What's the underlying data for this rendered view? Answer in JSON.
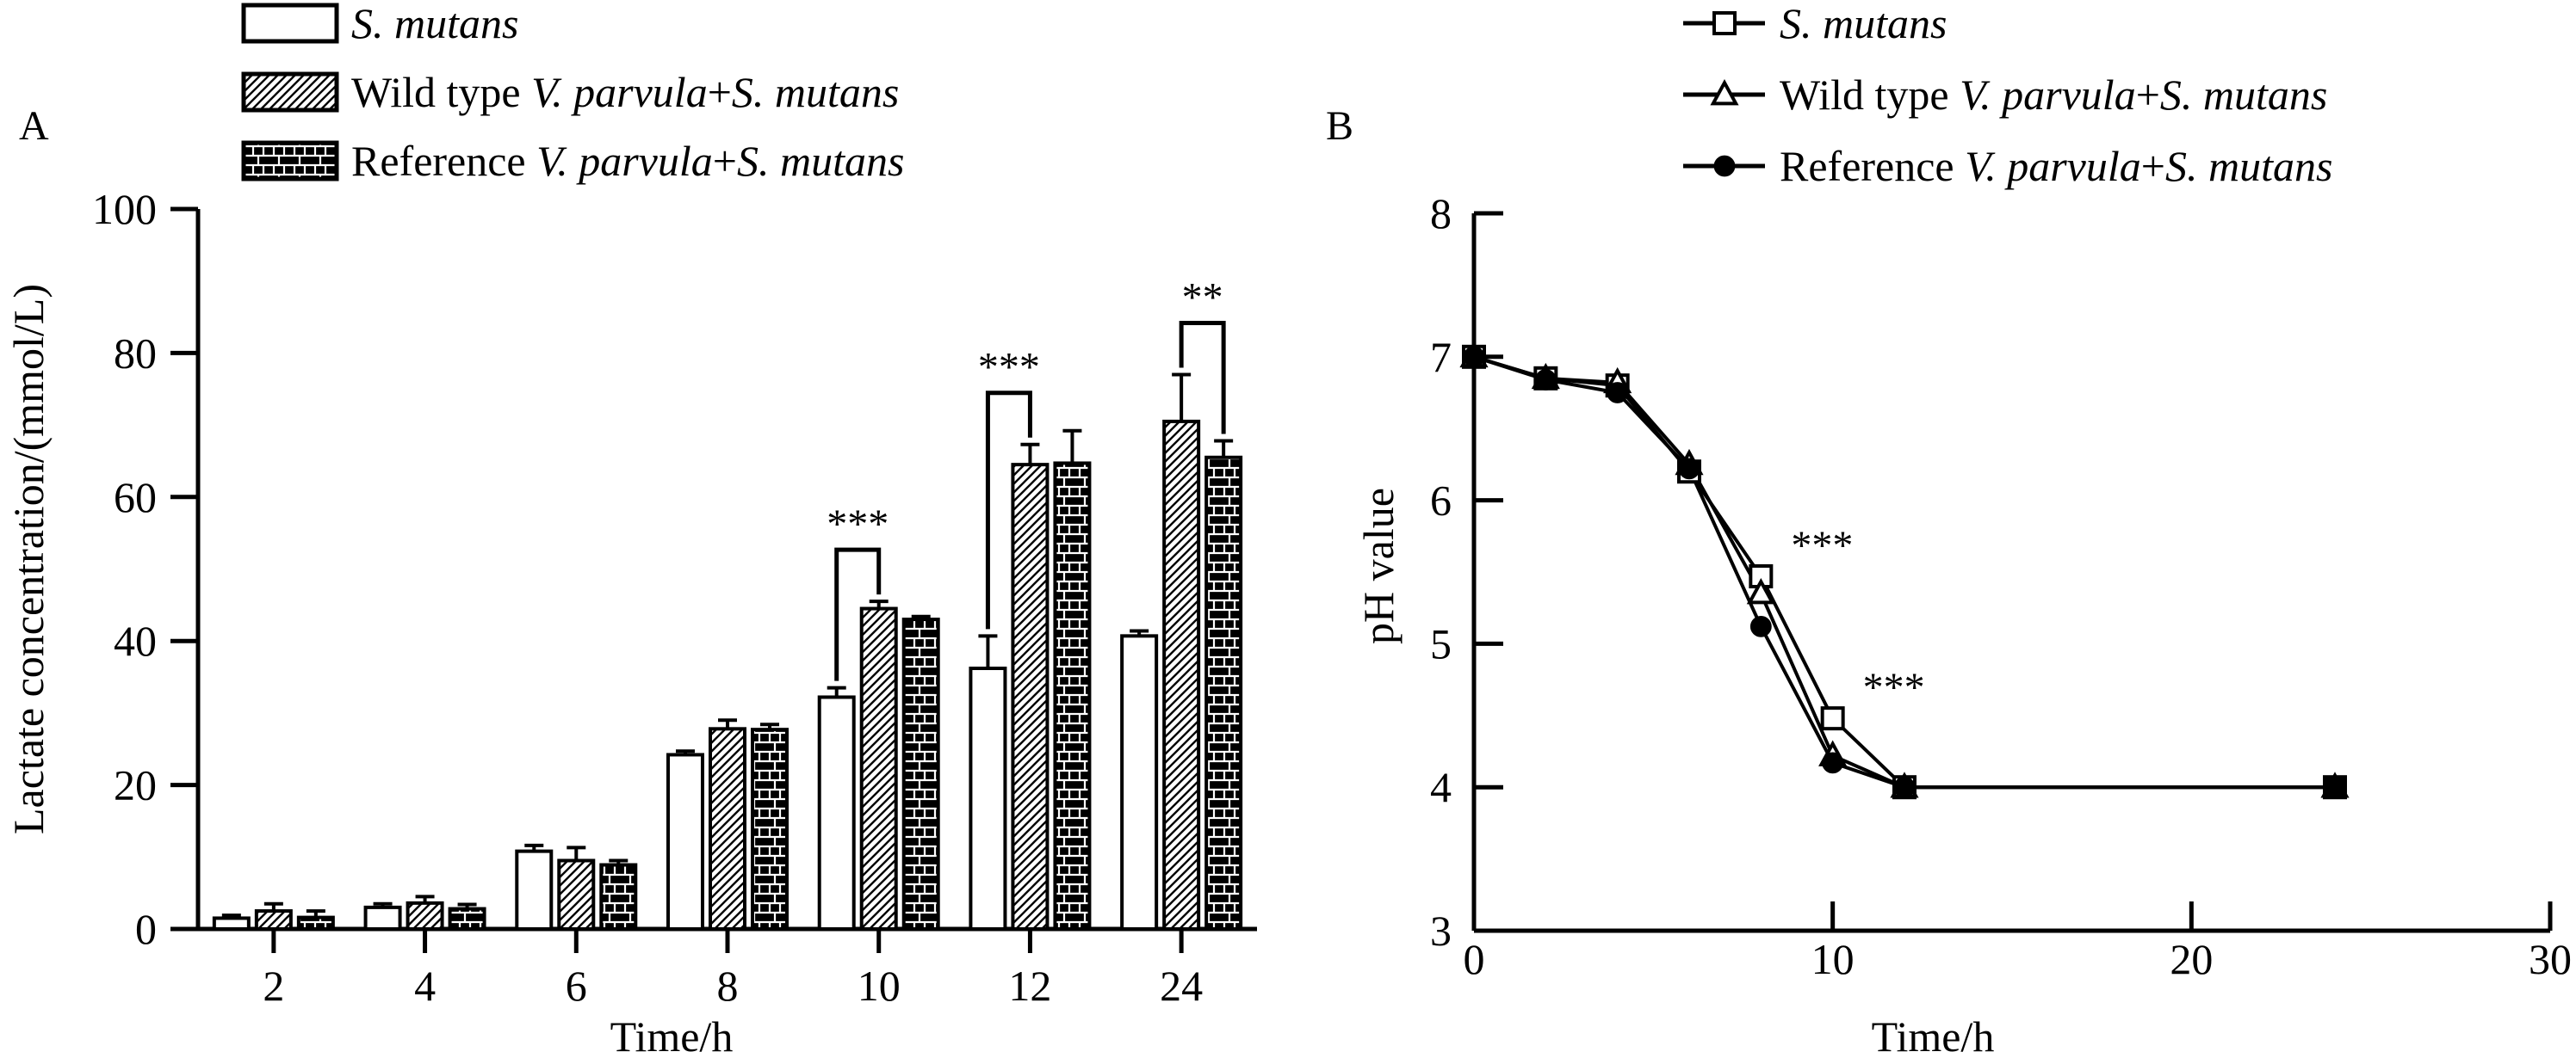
{
  "chart_data": [
    {
      "panel": "A",
      "type": "bar",
      "xlabel": "Time/h",
      "ylabel": "Lactate concentration/(mmol/L)",
      "ylim": [
        0,
        100
      ],
      "yticks": [
        "0",
        "20",
        "40",
        "60",
        "80",
        "100"
      ],
      "categories": [
        "2",
        "4",
        "6",
        "8",
        "10",
        "12",
        "24"
      ],
      "series": [
        {
          "name": "S. mutans",
          "pattern": "open",
          "values": [
            1.5,
            3.0,
            10.8,
            24.2,
            32.2,
            36.2,
            40.7
          ],
          "errors": [
            0.4,
            0.5,
            0.8,
            0.5,
            1.3,
            4.5,
            0.7
          ]
        },
        {
          "name": "Wild type V. parvula+S. mutans",
          "pattern": "hatched",
          "values": [
            2.5,
            3.6,
            9.5,
            27.8,
            44.5,
            64.5,
            70.5
          ],
          "errors": [
            1.0,
            0.9,
            1.8,
            1.2,
            1.0,
            2.8,
            6.5
          ]
        },
        {
          "name": "Reference V. parvula+S. mutans",
          "pattern": "brick",
          "values": [
            1.6,
            2.8,
            8.9,
            27.7,
            43.0,
            64.7,
            65.5
          ],
          "errors": [
            0.9,
            0.6,
            0.6,
            0.7,
            0.4,
            4.5,
            2.3
          ]
        }
      ],
      "legend_labels": [
        {
          "plain": "",
          "italic": "S. mutans",
          "plain2": "",
          "italic2": ""
        },
        {
          "plain": "Wild type ",
          "italic": "V. parvula",
          "plain2": "+",
          "italic2": "S. mutans"
        },
        {
          "plain": "Reference ",
          "italic": "V. parvula",
          "plain2": "+",
          "italic2": "S. mutans"
        }
      ],
      "legend_placement": "top",
      "significance": [
        {
          "label": "***",
          "category": "10",
          "from_series": 0,
          "to_series": 1
        },
        {
          "label": "***",
          "category": "12",
          "from_series": 0,
          "to_series": 1
        },
        {
          "label": "**",
          "category": "24",
          "from_series": 1,
          "to_series": 2
        }
      ]
    },
    {
      "panel": "B",
      "type": "line",
      "xlabel": "Time/h",
      "ylabel": "pH value",
      "xlim": [
        0,
        30
      ],
      "ylim": [
        3,
        8
      ],
      "xticks": [
        "0",
        "10",
        "20",
        "30"
      ],
      "yticks": [
        "3",
        "4",
        "5",
        "6",
        "7",
        "8"
      ],
      "x": [
        0,
        2,
        4,
        6,
        8,
        10,
        12,
        24
      ],
      "series": [
        {
          "name": "S. mutans",
          "marker": "square",
          "values": [
            7.0,
            6.85,
            6.8,
            6.2,
            5.47,
            4.48,
            4.0,
            4.0
          ]
        },
        {
          "name": "Wild type V. parvula+S. mutans",
          "marker": "triangle",
          "values": [
            7.0,
            6.85,
            6.82,
            6.25,
            5.35,
            4.22,
            4.0,
            4.0
          ]
        },
        {
          "name": "Reference V. parvula+S. mutans",
          "marker": "circle",
          "values": [
            7.0,
            6.84,
            6.75,
            6.22,
            5.12,
            4.17,
            4.0,
            4.0
          ]
        }
      ],
      "legend_labels": [
        {
          "plain": "",
          "italic": "S. mutans",
          "plain2": "",
          "italic2": ""
        },
        {
          "plain": "Wild type ",
          "italic": "V. parvula",
          "plain2": "+",
          "italic2": "S. mutans"
        },
        {
          "plain": "Reference ",
          "italic": "V. parvula",
          "plain2": "+",
          "italic2": "S. mutans"
        }
      ],
      "legend_placement": "top",
      "significance": [
        {
          "label": "***",
          "x": 8
        },
        {
          "label": "***",
          "x": 10
        }
      ]
    }
  ]
}
